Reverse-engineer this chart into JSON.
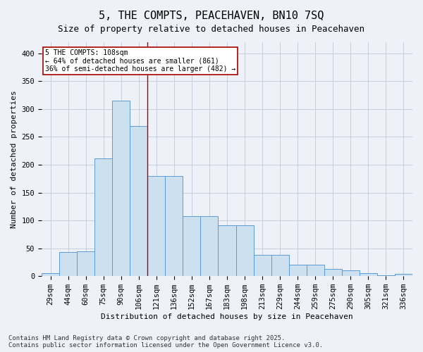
{
  "title": "5, THE COMPTS, PEACEHAVEN, BN10 7SQ",
  "subtitle": "Size of property relative to detached houses in Peacehaven",
  "xlabel": "Distribution of detached houses by size in Peacehaven",
  "ylabel": "Number of detached properties",
  "categories": [
    "29sqm",
    "44sqm",
    "60sqm",
    "75sqm",
    "90sqm",
    "106sqm",
    "121sqm",
    "136sqm",
    "152sqm",
    "167sqm",
    "183sqm",
    "198sqm",
    "213sqm",
    "229sqm",
    "244sqm",
    "259sqm",
    "275sqm",
    "290sqm",
    "305sqm",
    "321sqm",
    "336sqm"
  ],
  "values": [
    5,
    43,
    44,
    211,
    315,
    270,
    180,
    180,
    108,
    108,
    91,
    91,
    38,
    38,
    21,
    21,
    13,
    10,
    5,
    2,
    4
  ],
  "bar_color": "#cde0f0",
  "bar_edge_color": "#5b9bd5",
  "vline_x": 5.5,
  "marker_label_line1": "5 THE COMPTS: 108sqm",
  "marker_label_line2": "← 64% of detached houses are smaller (861)",
  "marker_label_line3": "36% of semi-detached houses are larger (482) →",
  "vline_color": "#aa0000",
  "annotation_box_edge": "#aa0000",
  "ylim": [
    0,
    420
  ],
  "yticks": [
    0,
    50,
    100,
    150,
    200,
    250,
    300,
    350,
    400
  ],
  "footnote": "Contains HM Land Registry data © Crown copyright and database right 2025.\nContains public sector information licensed under the Open Government Licence v3.0.",
  "background_color": "#eef2f8",
  "plot_background_color": "#eef2f8",
  "grid_color": "#c0c8d8",
  "title_fontsize": 11,
  "subtitle_fontsize": 9,
  "footnote_fontsize": 6.5,
  "axis_label_fontsize": 8,
  "tick_fontsize": 7.5
}
